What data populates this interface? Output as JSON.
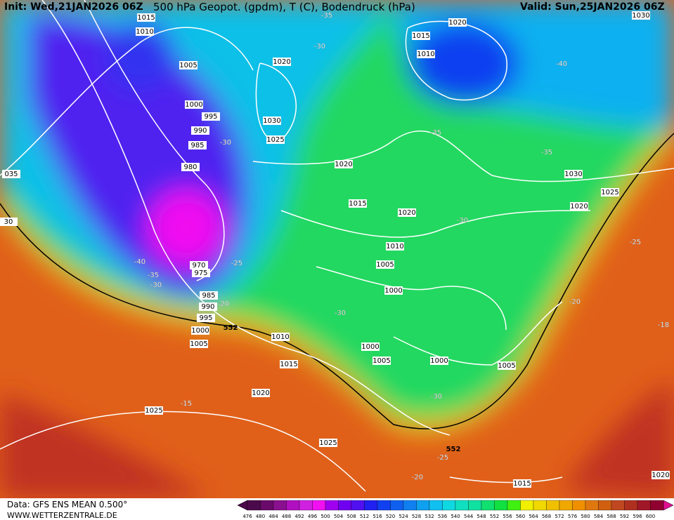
{
  "header": {
    "init": "Init: Wed,21JAN2026 06Z",
    "title": "500 hPa Geopot. (gpdm), T (C), Bodendruck (hPa)",
    "valid": "Valid: Sun,25JAN2026 06Z"
  },
  "footer": {
    "data": "Data: GFS ENS MEAN 0.500°",
    "site": "WWW.WETTERZENTRALE.DE"
  },
  "colorbar": {
    "values": [
      476,
      480,
      484,
      488,
      492,
      496,
      500,
      504,
      508,
      512,
      516,
      520,
      524,
      528,
      532,
      536,
      540,
      544,
      548,
      552,
      556,
      560,
      564,
      568,
      572,
      576,
      580,
      584,
      588,
      592,
      596,
      600
    ],
    "colors": [
      "#4b0a4b",
      "#6a0a6a",
      "#8a1090",
      "#b010c0",
      "#d020e0",
      "#f010f0",
      "#a000f0",
      "#7000f0",
      "#5010f0",
      "#2020f0",
      "#1040f0",
      "#1060f0",
      "#1080f0",
      "#10a0f0",
      "#10c0f0",
      "#10d8e0",
      "#10e0c0",
      "#10e0a0",
      "#10e070",
      "#10e040",
      "#40f010",
      "#f0f000",
      "#f0d800",
      "#f0c000",
      "#f0a800",
      "#f09000",
      "#e07810",
      "#d06010",
      "#c04820",
      "#b03020",
      "#a01828",
      "#900030"
    ]
  },
  "isobar_labels": [
    "1015",
    "1010",
    "1005",
    "1000",
    "995",
    "990",
    "985",
    "980",
    "970",
    "975",
    "985",
    "990",
    "995",
    "1000",
    "1005",
    "1010",
    "1015",
    "1020",
    "1025",
    "1025",
    "1030",
    "1025",
    "1020",
    "1020",
    "1015",
    "1020",
    "1010",
    "1005",
    "1000",
    "1000",
    "1005",
    "1000",
    "1005",
    "1015",
    "1010",
    "1020",
    "1030",
    "1025",
    "1020",
    "1015",
    "1030",
    "1020",
    "035",
    "30"
  ],
  "temperature_labels": [
    "-35",
    "-30",
    "-40",
    "-35",
    "-35",
    "-30",
    "-30",
    "-25",
    "-40",
    "-35",
    "-30",
    "-20",
    "-30",
    "-30",
    "-20",
    "-25",
    "-15",
    "-25",
    "-20",
    "-18"
  ],
  "thickness_labels": [
    "552",
    "552"
  ]
}
